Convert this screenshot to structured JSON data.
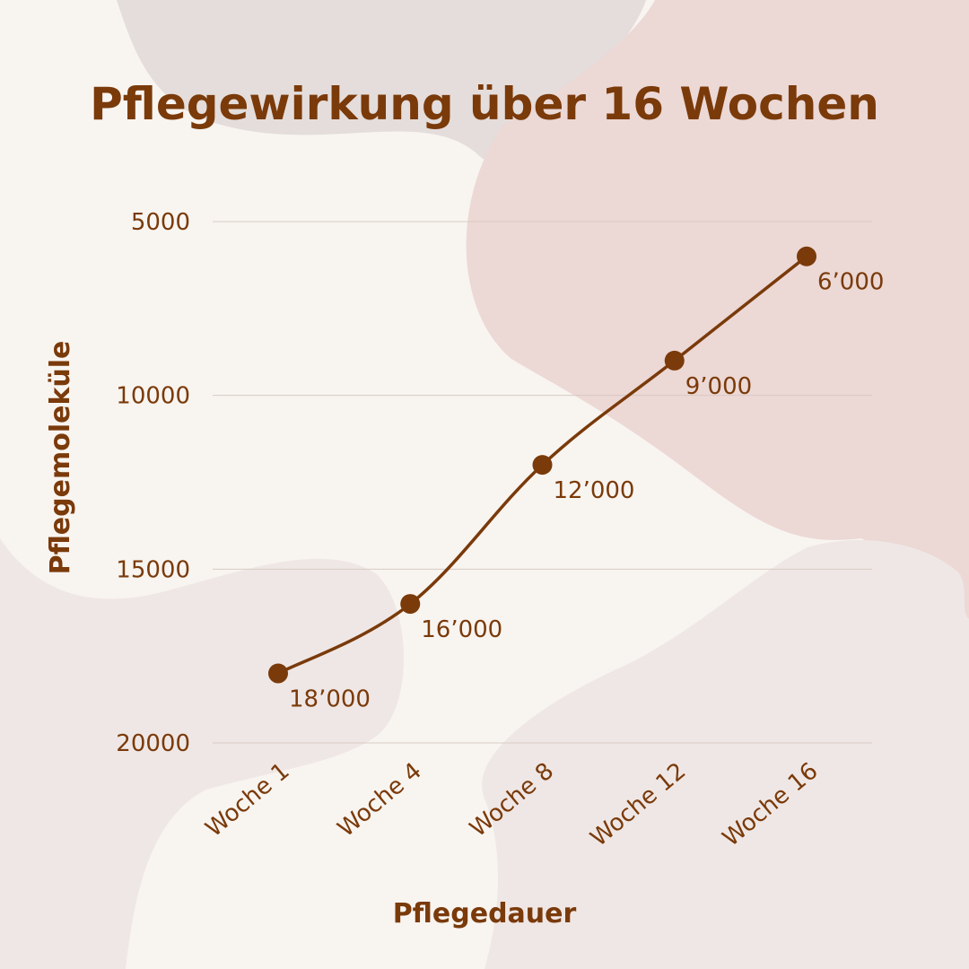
{
  "colors": {
    "background": "#f8f4f0",
    "accent": "#7a3a0a",
    "blob_gray": "#e4dddb",
    "blob_pink": "#ecd8d5",
    "blob_light": "#efe7e5",
    "grid": "#d9cbc3"
  },
  "chart_data": {
    "type": "line",
    "title": "Pflegewirkung über 16 Wochen",
    "xlabel": "Pflegedauer",
    "ylabel": "Pflegemoleküle",
    "categories": [
      "Woche 1",
      "Woche 4",
      "Woche 8",
      "Woche 12",
      "Woche 16"
    ],
    "values": [
      18000,
      16000,
      12000,
      9000,
      6000
    ],
    "data_labels": [
      "18’000",
      "16’000",
      "12’000",
      "9’000",
      "6’000"
    ],
    "y_ticks": [
      5000,
      10000,
      15000,
      20000
    ],
    "y_tick_labels": [
      "5000",
      "10000",
      "15000",
      "20000"
    ],
    "ylim": [
      5000,
      20000
    ],
    "y_inverted": true,
    "grid": true,
    "legend": "none"
  }
}
